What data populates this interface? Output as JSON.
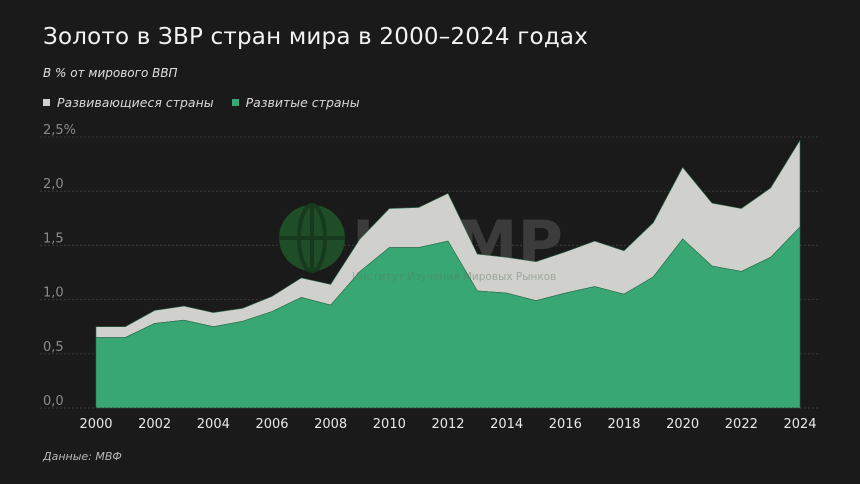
{
  "title": "Золото в ЗВР стран мира в 2000–2024 годах",
  "subtitle": "В % от мирового ВВП",
  "source": "Данные: МВФ",
  "watermark": {
    "logo_text": "ИИМР",
    "tagline": "Институт Изучения Мировых Рынков"
  },
  "colors": {
    "background": "#1a1a1a",
    "developing": "#d0d0cc",
    "developed": "#38a773",
    "watermark_globe": "#1f4d28"
  },
  "chart_data": {
    "type": "area",
    "stacked": true,
    "x": [
      2000,
      2001,
      2002,
      2003,
      2004,
      2005,
      2006,
      2007,
      2008,
      2009,
      2010,
      2011,
      2012,
      2013,
      2014,
      2015,
      2016,
      2017,
      2018,
      2019,
      2020,
      2021,
      2022,
      2023,
      2024
    ],
    "series": [
      {
        "name": "Развитые страны",
        "color": "#38a773",
        "values": [
          0.65,
          0.65,
          0.78,
          0.81,
          0.75,
          0.8,
          0.89,
          1.02,
          0.95,
          1.26,
          1.48,
          1.48,
          1.54,
          1.08,
          1.06,
          0.99,
          1.06,
          1.12,
          1.05,
          1.21,
          1.56,
          1.31,
          1.26,
          1.39,
          1.67
        ]
      },
      {
        "name": "Развивающиеся страны",
        "color": "#d0d0cc",
        "values": [
          0.1,
          0.1,
          0.12,
          0.13,
          0.13,
          0.12,
          0.14,
          0.18,
          0.19,
          0.3,
          0.36,
          0.37,
          0.44,
          0.34,
          0.33,
          0.36,
          0.38,
          0.42,
          0.4,
          0.5,
          0.66,
          0.58,
          0.58,
          0.64,
          0.8
        ]
      }
    ],
    "legend_order": [
      "Развивающиеся страны",
      "Развитые страны"
    ],
    "legend_placement": "top-left",
    "ylim": [
      0,
      2.5
    ],
    "y_ticks": [
      "0,0",
      "0,5",
      "1,0",
      "1,5",
      "2,0",
      "2,5%"
    ],
    "x_ticks": [
      "2000",
      "2002",
      "2004",
      "2006",
      "2008",
      "2010",
      "2012",
      "2014",
      "2016",
      "2018",
      "2020",
      "2022",
      "2024"
    ],
    "grid": "horizontal dotted"
  }
}
